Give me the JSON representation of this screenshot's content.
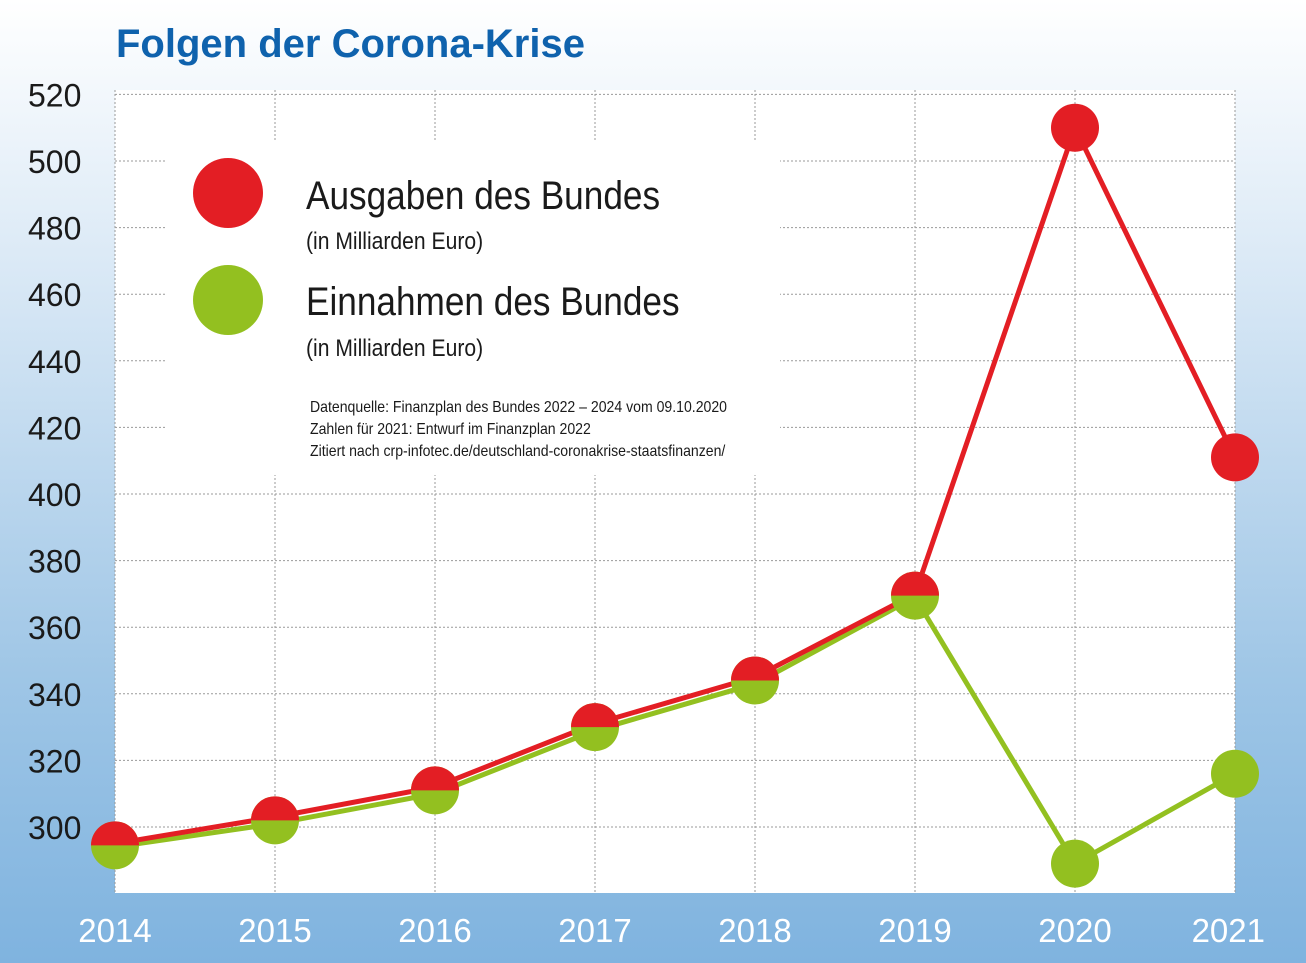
{
  "chart_data": {
    "type": "line",
    "title": "Folgen der Corona-Krise",
    "xlabel": "",
    "ylabel": "",
    "categories": [
      "2014",
      "2015",
      "2016",
      "2017",
      "2018",
      "2019",
      "2020",
      "2021"
    ],
    "ylim": [
      280,
      520
    ],
    "yticks": [
      "300",
      "320",
      "340",
      "360",
      "380",
      "400",
      "420",
      "440",
      "460",
      "480",
      "500",
      "520"
    ],
    "series": [
      {
        "name": "Ausgaben des Bundes",
        "subtitle": "(in Milliarden Euro)",
        "color": "#e31e24",
        "values": [
          295,
          303,
          312,
          331,
          345,
          370,
          510,
          411
        ]
      },
      {
        "name": "Einnahmen des Bundes",
        "subtitle": "(in Milliarden Euro)",
        "color": "#93c020",
        "values": [
          294,
          301,
          310,
          329,
          343,
          369,
          289,
          316
        ]
      }
    ],
    "legend_position": "top-left",
    "grid": true,
    "source_notes": [
      "Datenquelle: Finanzplan des Bundes 2022 – 2024 vom 09.10.2020",
      "Zahlen für 2021: Entwurf im Finanzplan 2022",
      "Zitiert nach crp-infotec.de/deutschland-coronakrise-staatsfinanzen/"
    ]
  }
}
